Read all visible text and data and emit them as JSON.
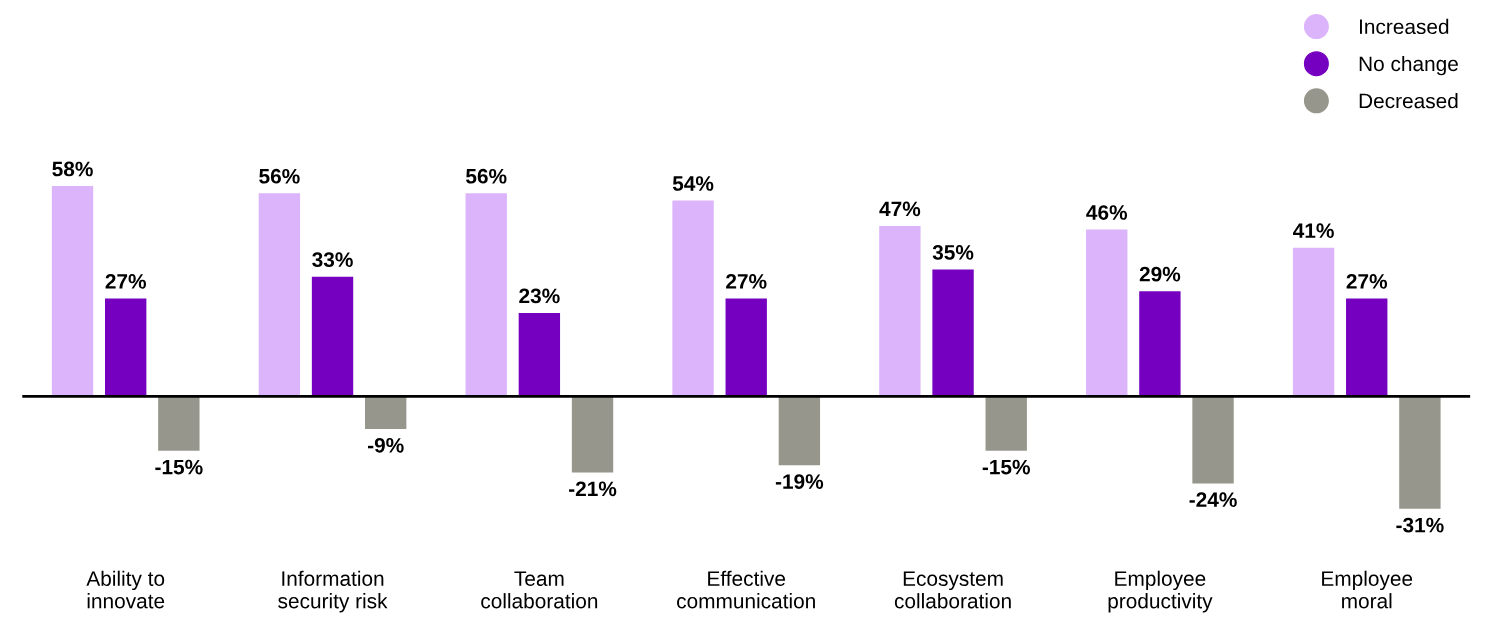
{
  "chart_data": {
    "type": "bar",
    "categories": [
      "Ability to\ninnovate",
      "Information\nsecurity risk",
      "Team\ncollaboration",
      "Effective\ncommunication",
      "Ecosystem\ncollaboration",
      "Employee\nproductivity",
      "Employee\nmoral"
    ],
    "series": [
      {
        "name": "Increased",
        "color": "#dcb4fc",
        "values": [
          58,
          56,
          56,
          54,
          47,
          46,
          41
        ],
        "value_labels": [
          "58%",
          "56%",
          "56%",
          "54%",
          "47%",
          "46%",
          "41%"
        ]
      },
      {
        "name": "No change",
        "color": "#7500c0",
        "values": [
          27,
          33,
          23,
          27,
          35,
          29,
          27
        ],
        "value_labels": [
          "27%",
          "33%",
          "23%",
          "27%",
          "35%",
          "29%",
          "27%"
        ]
      },
      {
        "name": "Decreased",
        "color": "#96968c",
        "values": [
          -15,
          -9,
          -21,
          -19,
          -15,
          -24,
          -31
        ],
        "value_labels": [
          "-15%",
          "-9%",
          "-21%",
          "-19%",
          "-15%",
          "-24%",
          "-31%"
        ]
      }
    ],
    "tick_labels": "x",
    "legend": "top right",
    "marker": "circle",
    "grid": false
  }
}
